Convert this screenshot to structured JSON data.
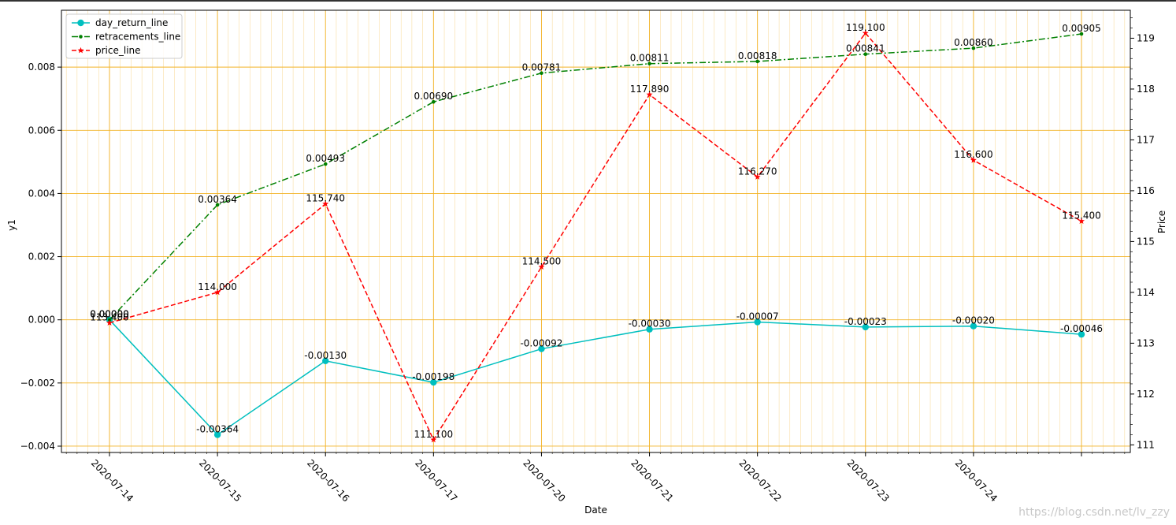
{
  "chart_data": {
    "type": "line",
    "xlabel": "Date",
    "ylabel": "y1",
    "ylabel_right": "Price",
    "categories": [
      "2020-07-14",
      "2020-07-15",
      "2020-07-16",
      "2020-07-17",
      "2020-07-20",
      "2020-07-21",
      "2020-07-22",
      "2020-07-23",
      "2020-07-24",
      ""
    ],
    "y_left": {
      "lim": [
        -0.0042,
        0.0098
      ],
      "ticks": [
        -0.004,
        -0.002,
        0.0,
        0.002,
        0.004,
        0.006,
        0.008
      ],
      "tick_labels": [
        "−0.004",
        "−0.002",
        "0.000",
        "0.002",
        "0.004",
        "0.006",
        "0.008"
      ]
    },
    "y_right": {
      "lim": [
        110.85,
        119.55
      ],
      "ticks": [
        111,
        112,
        113,
        114,
        115,
        116,
        117,
        118,
        119
      ],
      "tick_labels": [
        "111",
        "112",
        "113",
        "114",
        "115",
        "116",
        "117",
        "118",
        "119"
      ]
    },
    "grid": true,
    "legend_position": "upper-left",
    "series": [
      {
        "name": "day_return_line",
        "axis": "left",
        "color": "#00bfbf",
        "dash": "solid",
        "marker": "circle",
        "values": [
          0.0,
          -0.00364,
          -0.0013,
          -0.00198,
          -0.00092,
          -0.0003,
          -7e-05,
          -0.00023,
          -0.0002,
          -0.00046
        ],
        "labels": [
          "0.00000",
          "-0.00364",
          "-0.00130",
          "-0.00198",
          "-0.00092",
          "-0.00030",
          "-0.00007",
          "-0.00023",
          "-0.00020",
          "-0.00046"
        ]
      },
      {
        "name": "retracements_line",
        "axis": "left",
        "color": "#008000",
        "dash": "dashdot",
        "marker": "dot",
        "values": [
          0.0,
          0.00364,
          0.00493,
          0.0069,
          0.00781,
          0.00811,
          0.00818,
          0.00841,
          0.0086,
          0.00905
        ],
        "labels": [
          "0.00000",
          "0.00364",
          "0.00493",
          "0.00690",
          "0.00781",
          "0.00811",
          "0.00818",
          "0.00841",
          "0.00860",
          "0.00905"
        ]
      },
      {
        "name": "price_line",
        "axis": "right",
        "color": "#ff0000",
        "dash": "dashed",
        "marker": "star",
        "values": [
          113.4,
          114.0,
          115.74,
          111.1,
          114.5,
          117.89,
          116.27,
          119.1,
          116.6,
          115.4
        ],
        "labels": [
          "113.400",
          "114.000",
          "115.740",
          "111.100",
          "114.500",
          "117.890",
          "116.270",
          "119.100",
          "116.600",
          "115.400"
        ]
      }
    ]
  },
  "watermark": "https://blog.csdn.net/lv_zzy"
}
